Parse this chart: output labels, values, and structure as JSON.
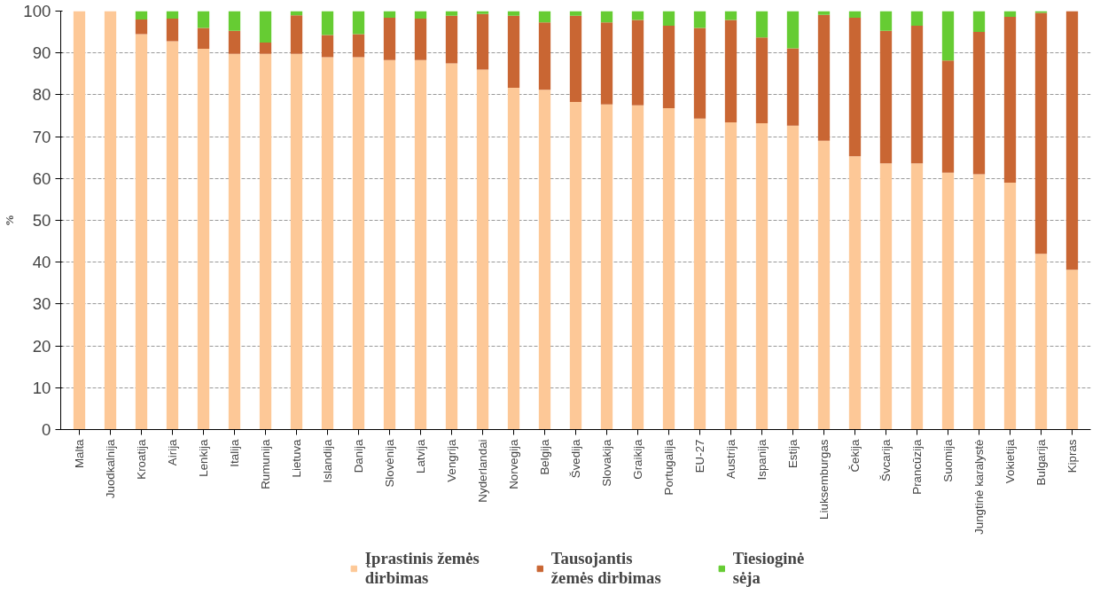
{
  "chart_data": {
    "type": "bar",
    "stacked": true,
    "ylabel": "%",
    "categories": [
      "Malta",
      "Juodkalnija",
      "Kroatija",
      "Airija",
      "Lenkija",
      "Italija",
      "Rumunija",
      "Lietuva",
      "Islandija",
      "Danija",
      "Slovėnija",
      "Latvija",
      "Vengrija",
      "Nyderlandai",
      "Norvegija",
      "Belgija",
      "Švedija",
      "Slovakija",
      "Graikija",
      "Portugalija",
      "EU-27",
      "Austrija",
      "Ispanija",
      "Estija",
      "Liuksemburgas",
      "Čekija",
      "Švcarija",
      "Prancūzija",
      "Suomija",
      "Jungtinė karalystė",
      "Vokietija",
      "Bulgarija",
      "Kipras"
    ],
    "series": [
      {
        "name": "Įprastinis žemės\ndirbimas",
        "color": "#fdc897",
        "values": [
          100,
          100,
          94.5,
          92.8,
          91,
          89.8,
          89.8,
          89.8,
          89,
          89,
          88.3,
          88.3,
          87.5,
          86,
          81.7,
          81.2,
          78.3,
          77.7,
          77.5,
          76.8,
          74.3,
          73.4,
          73.2,
          72.6,
          69,
          65.3,
          63.6,
          63.6,
          61.4,
          61,
          59,
          42,
          38.2
        ]
      },
      {
        "name": "Tausojantis\nžemės dirbimas",
        "color": "#c96633",
        "values": [
          0,
          0,
          3.5,
          5.4,
          5,
          5.5,
          2.7,
          9.2,
          5.3,
          5.5,
          10.1,
          9.9,
          11.4,
          13.3,
          17.2,
          16.1,
          20.6,
          19.6,
          20.4,
          19.7,
          21.7,
          24.5,
          20.5,
          18.5,
          30.1,
          33.1,
          31.7,
          32.9,
          26.8,
          34,
          39.6,
          57.6,
          61.8
        ]
      },
      {
        "name": "Tiesioginė\nsėja",
        "color": "#66cc33",
        "values": [
          0,
          0,
          2,
          1.8,
          4,
          4.7,
          7.5,
          1,
          5.7,
          5.5,
          1.6,
          1.8,
          1.1,
          0.7,
          1.1,
          2.7,
          1.1,
          2.7,
          2.1,
          3.5,
          4,
          2.1,
          6.3,
          8.9,
          0.9,
          1.6,
          4.7,
          3.5,
          11.8,
          5,
          1.4,
          0.4,
          0
        ]
      }
    ],
    "ylim": [
      0,
      100
    ],
    "yticks": [
      0,
      10,
      20,
      30,
      40,
      50,
      60,
      70,
      80,
      90,
      100
    ],
    "grid": "y",
    "legend": "bottom"
  }
}
